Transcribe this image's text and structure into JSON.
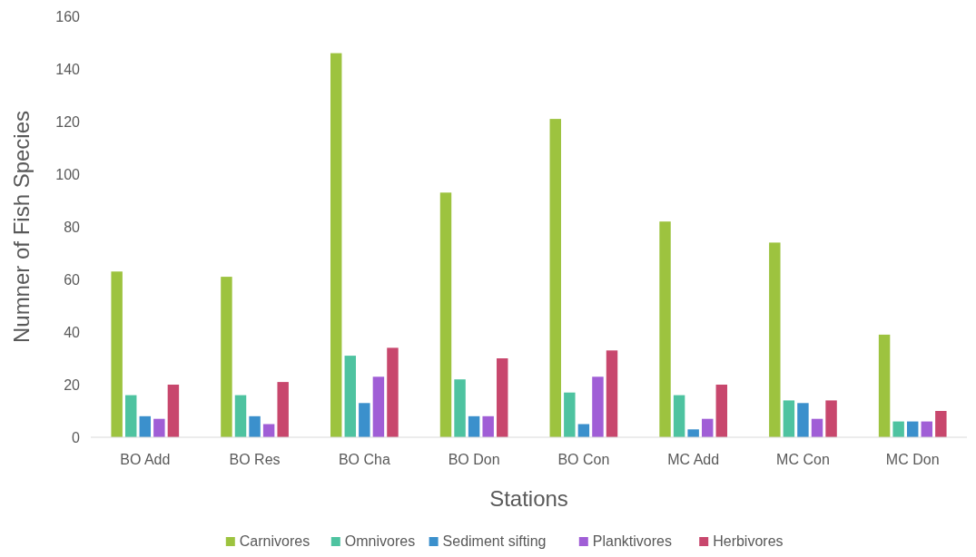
{
  "chart_data": {
    "type": "bar",
    "xlabel": "Stations",
    "ylabel": "Numner of Fish Species",
    "categories": [
      "BO Add",
      "BO Res",
      "BO Cha",
      "BO Don",
      "BO Con",
      "MC Add",
      "MC Con",
      "MC Don"
    ],
    "series": [
      {
        "name": "Carnivores",
        "color": "#9dc33f",
        "values": [
          63,
          61,
          146,
          93,
          121,
          82,
          74,
          39
        ]
      },
      {
        "name": "Omnivores",
        "color": "#4ec3a0",
        "values": [
          16,
          16,
          31,
          22,
          17,
          16,
          14,
          6
        ]
      },
      {
        "name": "Sediment sifting",
        "color": "#3b90cc",
        "values": [
          8,
          8,
          13,
          8,
          5,
          3,
          13,
          6
        ]
      },
      {
        "name": "Planktivores",
        "color": "#a05ed6",
        "values": [
          7,
          5,
          23,
          8,
          23,
          7,
          7,
          6
        ]
      },
      {
        "name": "Herbivores",
        "color": "#c8476d",
        "values": [
          20,
          21,
          34,
          30,
          33,
          20,
          14,
          10
        ]
      }
    ],
    "ylim": [
      0,
      160
    ],
    "yticks": [
      0,
      20,
      40,
      60,
      80,
      100,
      120,
      140,
      160
    ],
    "grid": false,
    "legend": "bottom"
  }
}
